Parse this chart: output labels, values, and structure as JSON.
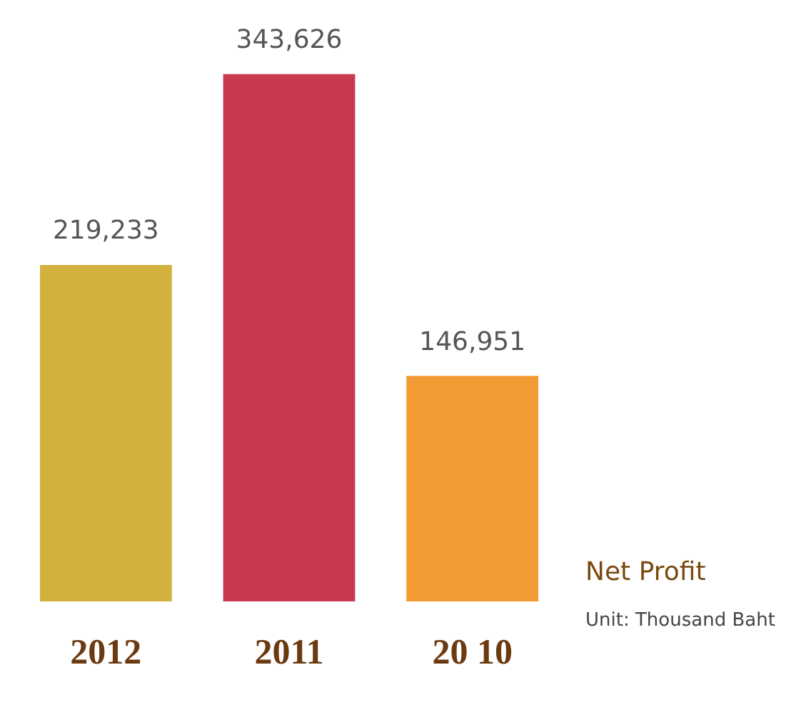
{
  "chart_data": {
    "type": "bar",
    "title": "Net Profit",
    "subtitle": "Unit: Thousand Baht",
    "categories": [
      "2012",
      "2011",
      "20 10"
    ],
    "values": [
      219233,
      343626,
      146951
    ],
    "colors": [
      "#d2b23c",
      "#c93a50",
      "#f29a34"
    ],
    "value_labels": [
      "219,233",
      "343,626",
      "146,951"
    ],
    "grid": false,
    "legend": false
  }
}
